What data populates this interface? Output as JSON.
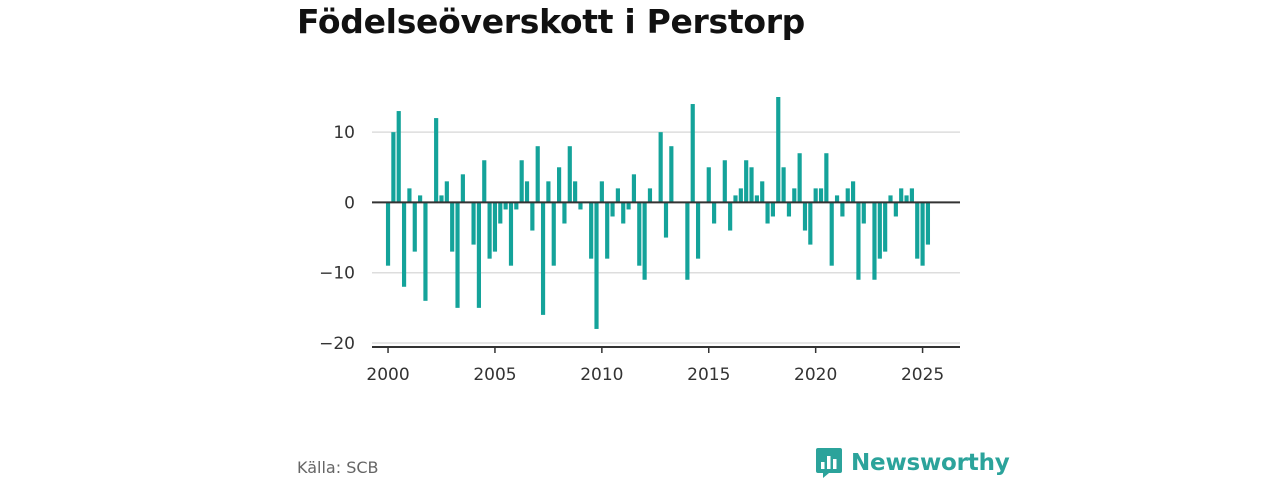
{
  "title": "Födelseöverskott i Perstorp",
  "source": "Källa: SCB",
  "brand": {
    "name": "Newsworthy",
    "icon": "bar-chart-logo-icon"
  },
  "colors": {
    "bar": "#14a39a",
    "grid": "#dddddd",
    "axis": "#333333",
    "brand": "#2ba39b"
  },
  "chart_data": {
    "type": "bar",
    "x_ticks": [
      2000,
      2005,
      2010,
      2015,
      2020,
      2025
    ],
    "y_ticks": [
      10,
      0,
      -10,
      -20
    ],
    "y_tick_labels": [
      "10",
      "0",
      "−10",
      "−20"
    ],
    "ylim": [
      -20,
      15
    ],
    "xlim": [
      1999.25,
      2026.75
    ],
    "grid": true,
    "x": [
      2000.0,
      2000.25,
      2000.5,
      2000.75,
      2001.0,
      2001.25,
      2001.5,
      2001.75,
      2002.0,
      2002.25,
      2002.5,
      2002.75,
      2003.0,
      2003.25,
      2003.5,
      2003.75,
      2004.0,
      2004.25,
      2004.5,
      2004.75,
      2005.0,
      2005.25,
      2005.5,
      2005.75,
      2006.0,
      2006.25,
      2006.5,
      2006.75,
      2007.0,
      2007.25,
      2007.5,
      2007.75,
      2008.0,
      2008.25,
      2008.5,
      2008.75,
      2009.0,
      2009.25,
      2009.5,
      2009.75,
      2010.0,
      2010.25,
      2010.5,
      2010.75,
      2011.0,
      2011.25,
      2011.5,
      2011.75,
      2012.0,
      2012.25,
      2012.5,
      2012.75,
      2013.0,
      2013.25,
      2013.5,
      2013.75,
      2014.0,
      2014.25,
      2014.5,
      2014.75,
      2015.0,
      2015.25,
      2015.5,
      2015.75,
      2016.0,
      2016.25,
      2016.5,
      2016.75,
      2017.0,
      2017.25,
      2017.5,
      2017.75,
      2018.0,
      2018.25,
      2018.5,
      2018.75,
      2019.0,
      2019.25,
      2019.5,
      2019.75,
      2020.0,
      2020.25,
      2020.5,
      2020.75,
      2021.0,
      2021.25,
      2021.5,
      2021.75,
      2022.0,
      2022.25,
      2022.5,
      2022.75,
      2023.0,
      2023.25,
      2023.5,
      2023.75,
      2024.0,
      2024.25,
      2024.5,
      2024.75,
      2025.0,
      2025.25
    ],
    "values": [
      -9,
      10,
      13,
      -12,
      2,
      -7,
      1,
      -14,
      0,
      12,
      1,
      3,
      -7,
      -15,
      4,
      0,
      -6,
      -15,
      6,
      -8,
      -7,
      -3,
      -1,
      -9,
      -1,
      6,
      3,
      -4,
      8,
      -16,
      3,
      -9,
      5,
      -3,
      8,
      3,
      -1,
      0,
      -8,
      -18,
      3,
      -8,
      -2,
      2,
      -3,
      -1,
      4,
      -9,
      -11,
      2,
      0,
      10,
      -5,
      8,
      0,
      0,
      -11,
      14,
      -8,
      0,
      5,
      -3,
      0,
      6,
      -4,
      1,
      2,
      6,
      5,
      1,
      3,
      -3,
      -2,
      15,
      5,
      -2,
      2,
      7,
      -4,
      -6,
      2,
      2,
      7,
      -9,
      1,
      -2,
      2,
      3,
      -11,
      -3,
      0,
      -11,
      -8,
      -7,
      1,
      -2,
      2,
      1,
      2,
      -8,
      -9,
      -6
    ]
  }
}
